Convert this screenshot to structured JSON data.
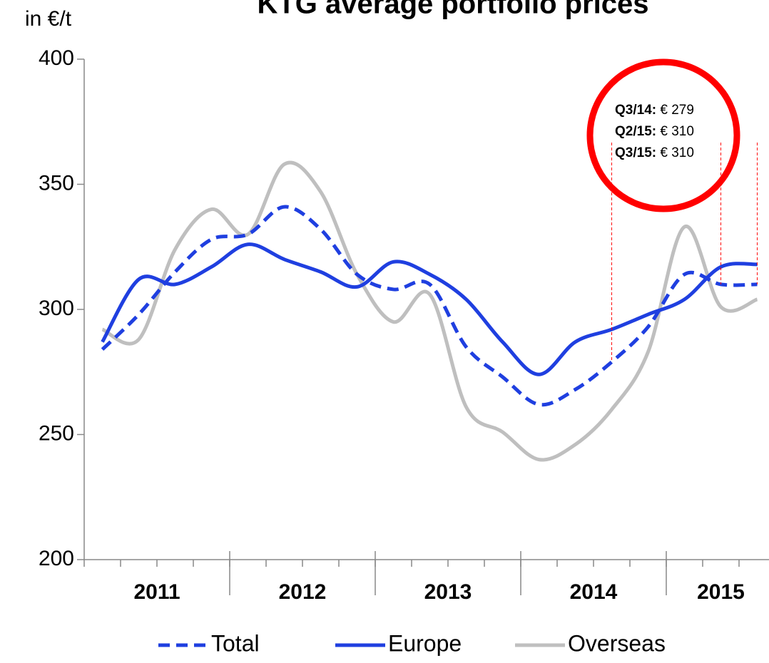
{
  "chart_data": {
    "type": "line",
    "title": "KTG average portfolio prices",
    "y_axis_label": "in €/t",
    "categories": [
      null,
      null,
      null,
      null,
      null,
      null,
      null,
      null,
      null,
      null,
      null,
      null,
      null,
      null,
      null,
      null,
      null,
      null,
      null
    ],
    "year_groups": [
      {
        "label": "2011",
        "quarters": 4
      },
      {
        "label": "2012",
        "quarters": 4
      },
      {
        "label": "2013",
        "quarters": 4
      },
      {
        "label": "2014",
        "quarters": 4
      },
      {
        "label": "2015",
        "quarters": 3
      }
    ],
    "ylim": [
      200,
      400
    ],
    "yticks": [
      200,
      250,
      300,
      350,
      400
    ],
    "series": [
      {
        "name": "Total",
        "color": "#1f3fe0",
        "dashed": true,
        "values": [
          284,
          298,
          315,
          328,
          330,
          341,
          332,
          314,
          308,
          310,
          285,
          273,
          262,
          268,
          279,
          293,
          314,
          310,
          310
        ]
      },
      {
        "name": "Europe",
        "color": "#1f3fe0",
        "dashed": false,
        "values": [
          287,
          312,
          310,
          317,
          326,
          320,
          315,
          309,
          319,
          314,
          304,
          287,
          274,
          287,
          292,
          298,
          304,
          317,
          318
        ]
      },
      {
        "name": "Overseas",
        "color": "#bfbfbf",
        "dashed": false,
        "values": [
          292,
          288,
          324,
          340,
          330,
          358,
          347,
          314,
          295,
          306,
          261,
          251,
          240,
          246,
          260,
          283,
          333,
          301,
          304
        ]
      }
    ],
    "annotations": [
      {
        "label": "Q3/14:",
        "text": "€ 279",
        "index": 14
      },
      {
        "label": "Q2/15:",
        "text": "€ 310",
        "index": 17
      },
      {
        "label": "Q3/15:",
        "text": "€ 310",
        "index": 18
      }
    ],
    "annotation_color": "#ff0000"
  }
}
